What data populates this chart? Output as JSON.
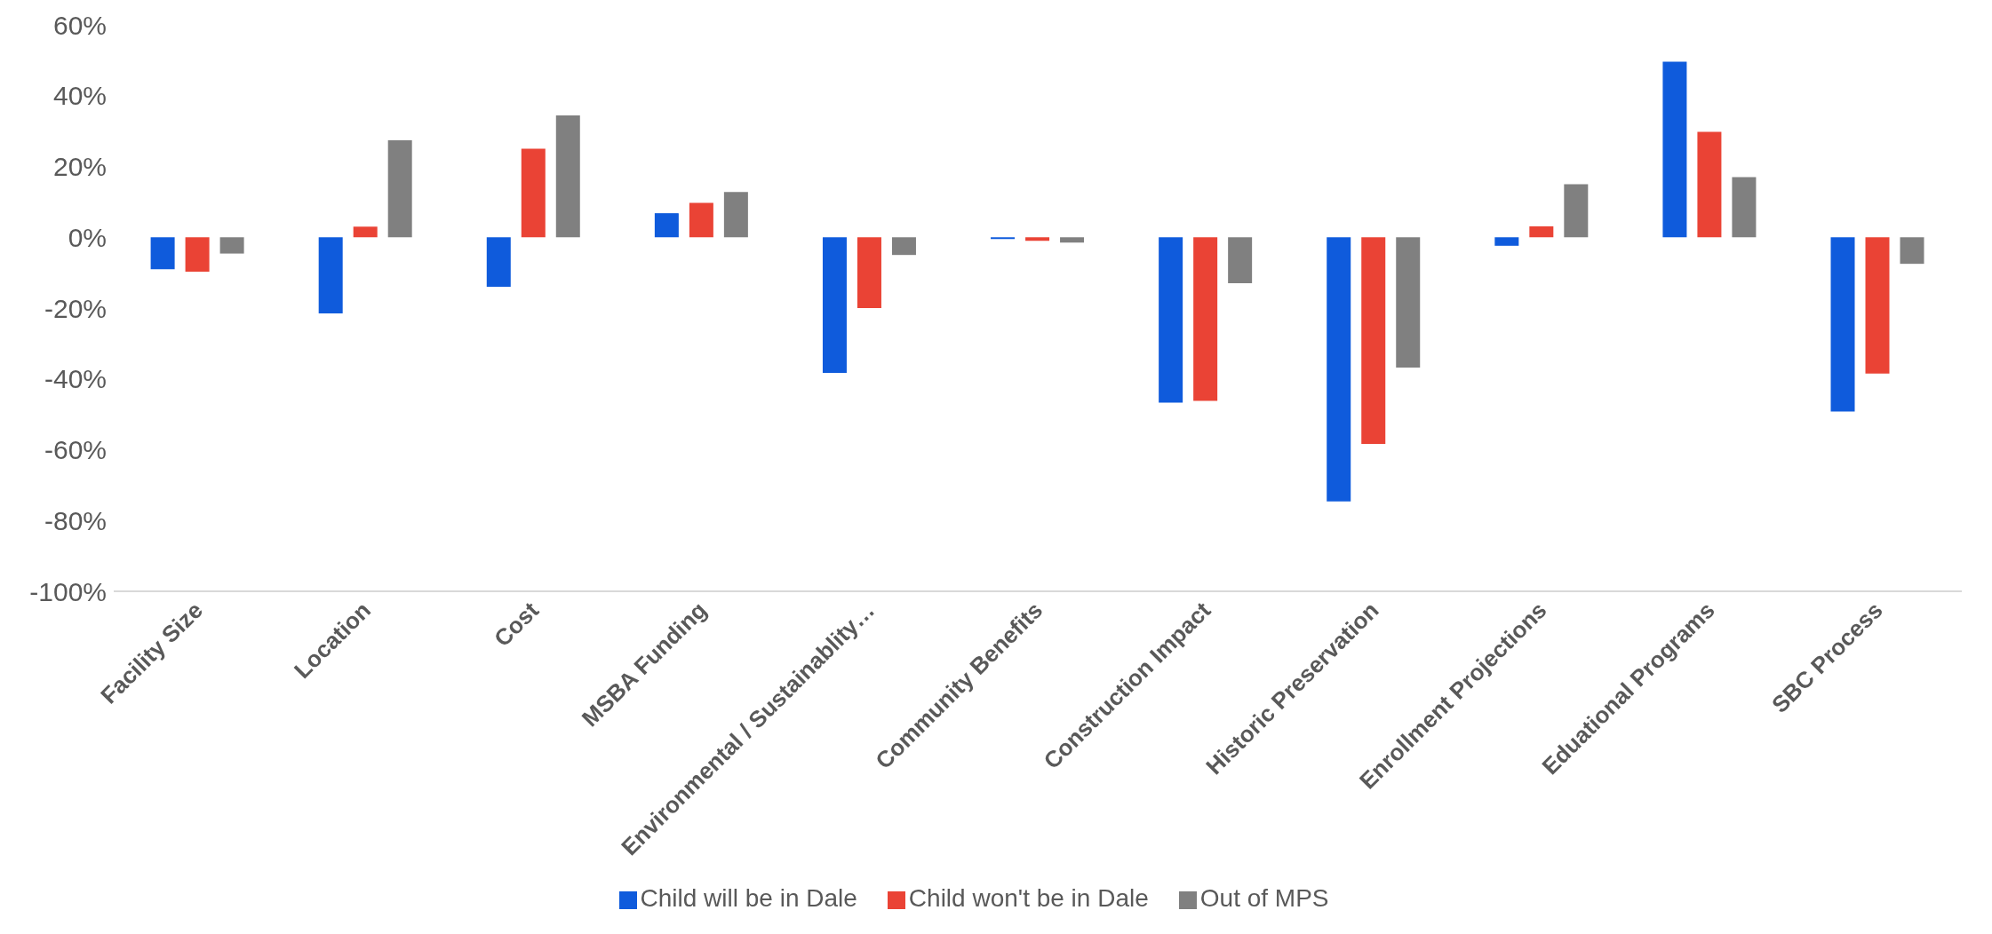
{
  "chart_data": {
    "type": "bar",
    "categories": [
      "Facility Size",
      "Location",
      "Cost",
      "MSBA Funding",
      "Environmental / Sustainablity…",
      "Community Benefits",
      "Construction Impact",
      "Historic Preservation",
      "Enrollment Projections",
      "Eduational Programs",
      "SBC Process"
    ],
    "series": [
      {
        "name": "Child will be in Dale",
        "color": "#0f5bdc",
        "values": [
          -9,
          -21.5,
          -14,
          6.8,
          -38.3,
          -0.5,
          -46.7,
          -74.6,
          -2.4,
          49.6,
          -49.2
        ]
      },
      {
        "name": "Child won't be in Dale",
        "color": "#ea4335",
        "values": [
          -9.7,
          3,
          25,
          9.7,
          -20,
          -1,
          -46.2,
          -58.4,
          3.1,
          29.8,
          -38.5
        ]
      },
      {
        "name": "Out of MPS",
        "color": "#808080",
        "values": [
          -4.6,
          27.4,
          34.4,
          12.8,
          -5,
          -1.5,
          -13,
          -36.8,
          15,
          17,
          -7.5
        ]
      }
    ],
    "ylim": [
      -100,
      60
    ],
    "yticks": [
      {
        "value": -100,
        "label": "-100%"
      },
      {
        "value": -80,
        "label": "-80%"
      },
      {
        "value": -60,
        "label": "-60%"
      },
      {
        "value": -40,
        "label": "-40%"
      },
      {
        "value": -20,
        "label": "-20%"
      },
      {
        "value": 0,
        "label": "0%"
      },
      {
        "value": 20,
        "label": "20%"
      },
      {
        "value": 40,
        "label": "40%"
      },
      {
        "value": 60,
        "label": "60%"
      }
    ],
    "grid": false,
    "legend": "bottom"
  }
}
